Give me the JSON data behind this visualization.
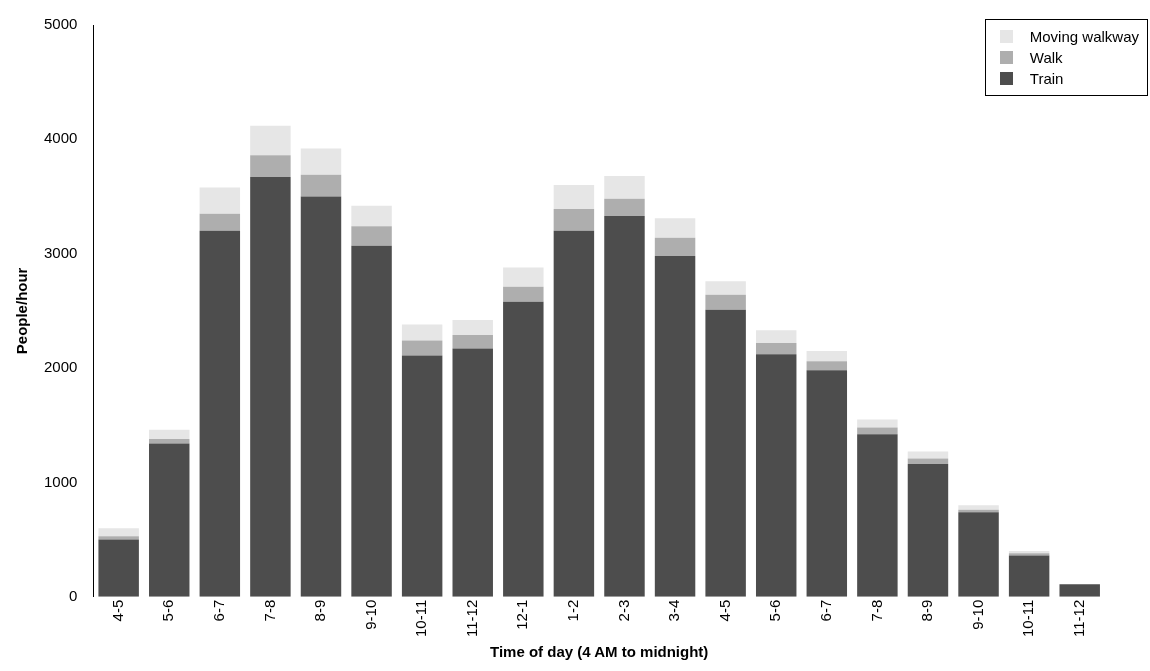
{
  "chart_data": {
    "type": "bar",
    "stacked": true,
    "xlabel": "Time of day (4 AM to midnight)",
    "ylabel": "People/hour",
    "categories": [
      "4-5",
      "5-6",
      "6-7",
      "7-8",
      "8-9",
      "9-10",
      "10-11",
      "11-12",
      "12-1",
      "1-2",
      "2-3",
      "3-4",
      "4-5",
      "5-6",
      "6-7",
      "7-8",
      "8-9",
      "9-10",
      "10-11",
      "11-12"
    ],
    "series": [
      {
        "name": "Train",
        "color": "#4d4d4d",
        "values": [
          500,
          1340,
          3200,
          3670,
          3500,
          3070,
          2110,
          2170,
          2580,
          3200,
          3330,
          2980,
          2510,
          2120,
          1980,
          1420,
          1160,
          740,
          360,
          110
        ]
      },
      {
        "name": "Walk",
        "color": "#aeaeae",
        "values": [
          30,
          40,
          150,
          190,
          190,
          170,
          130,
          120,
          130,
          190,
          150,
          160,
          130,
          100,
          80,
          60,
          50,
          20,
          20,
          0
        ]
      },
      {
        "name": "Moving walkway",
        "color": "#e6e6e6",
        "values": [
          70,
          80,
          230,
          260,
          230,
          180,
          140,
          130,
          170,
          210,
          200,
          170,
          120,
          110,
          90,
          70,
          60,
          40,
          20,
          0
        ]
      }
    ],
    "ylim": [
      0,
      5000
    ],
    "yticks": [
      0,
      1000,
      2000,
      3000,
      4000,
      5000
    ],
    "grid": false,
    "legend": "top right"
  }
}
